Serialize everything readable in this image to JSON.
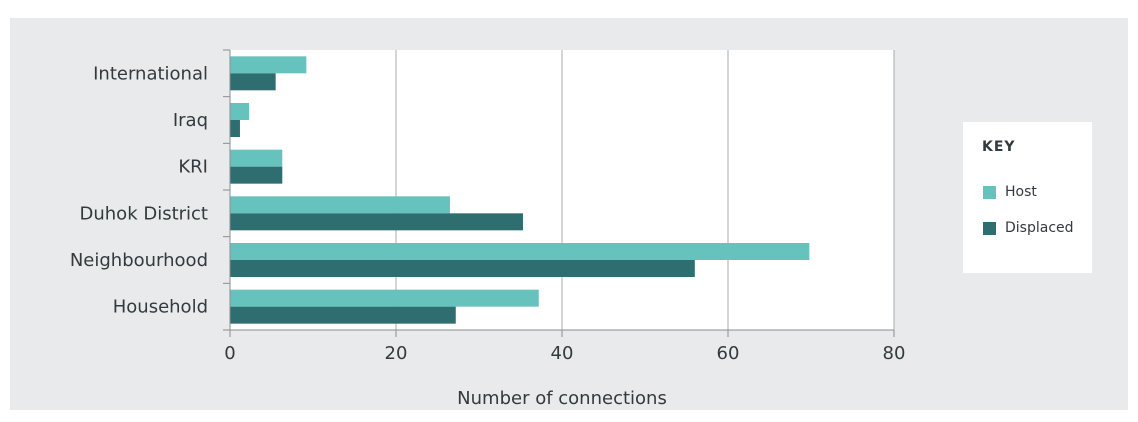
{
  "chart_data": {
    "type": "bar",
    "orientation": "horizontal",
    "categories": [
      "International",
      "Iraq",
      "KRI",
      "Duhok District",
      "Neighbourhood",
      "Household"
    ],
    "series": [
      {
        "name": "Host",
        "color": "#66c2bd",
        "values": [
          9.2,
          2.3,
          6.3,
          26.5,
          69.8,
          37.2
        ]
      },
      {
        "name": "Displaced",
        "color": "#2e6e70",
        "values": [
          5.5,
          1.2,
          6.3,
          35.3,
          56.0,
          27.2
        ]
      }
    ],
    "xlabel": "Number of connections",
    "xlim": [
      0,
      80
    ],
    "xticks": [
      0,
      20,
      40,
      60,
      80
    ],
    "grid": true,
    "legend": {
      "title": "KEY",
      "placement": "right"
    }
  }
}
